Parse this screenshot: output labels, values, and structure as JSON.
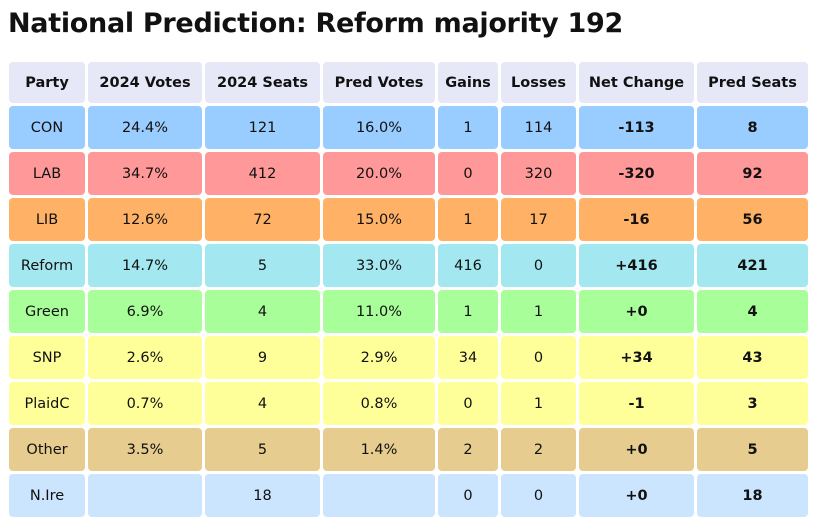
{
  "title": "National Prediction: Reform majority 192",
  "columns": [
    "Party",
    "2024 Votes",
    "2024 Seats",
    "Pred Votes",
    "Gains",
    "Losses",
    "Net Change",
    "Pred Seats"
  ],
  "rows": [
    {
      "party": "CON",
      "votes_2024": "24.4%",
      "seats_2024": "121",
      "pred_votes": "16.0%",
      "gains": "1",
      "losses": "114",
      "net_change": "-113",
      "pred_seats": "8",
      "color": "#99ccff"
    },
    {
      "party": "LAB",
      "votes_2024": "34.7%",
      "seats_2024": "412",
      "pred_votes": "20.0%",
      "gains": "0",
      "losses": "320",
      "net_change": "-320",
      "pred_seats": "92",
      "color": "#ff9999"
    },
    {
      "party": "LIB",
      "votes_2024": "12.6%",
      "seats_2024": "72",
      "pred_votes": "15.0%",
      "gains": "1",
      "losses": "17",
      "net_change": "-16",
      "pred_seats": "56",
      "color": "#ffb266"
    },
    {
      "party": "Reform",
      "votes_2024": "14.7%",
      "seats_2024": "5",
      "pred_votes": "33.0%",
      "gains": "416",
      "losses": "0",
      "net_change": "+416",
      "pred_seats": "421",
      "color": "#a3e8f0"
    },
    {
      "party": "Green",
      "votes_2024": "6.9%",
      "seats_2024": "4",
      "pred_votes": "11.0%",
      "gains": "1",
      "losses": "1",
      "net_change": "+0",
      "pred_seats": "4",
      "color": "#a8ff99"
    },
    {
      "party": "SNP",
      "votes_2024": "2.6%",
      "seats_2024": "9",
      "pred_votes": "2.9%",
      "gains": "34",
      "losses": "0",
      "net_change": "+34",
      "pred_seats": "43",
      "color": "#ffff99"
    },
    {
      "party": "PlaidC",
      "votes_2024": "0.7%",
      "seats_2024": "4",
      "pred_votes": "0.8%",
      "gains": "0",
      "losses": "1",
      "net_change": "-1",
      "pred_seats": "3",
      "color": "#ffff99"
    },
    {
      "party": "Other",
      "votes_2024": "3.5%",
      "seats_2024": "5",
      "pred_votes": "1.4%",
      "gains": "2",
      "losses": "2",
      "net_change": "+0",
      "pred_seats": "5",
      "color": "#e6cc8f"
    },
    {
      "party": "N.Ire",
      "votes_2024": "",
      "seats_2024": "18",
      "pred_votes": "",
      "gains": "0",
      "losses": "0",
      "net_change": "+0",
      "pred_seats": "18",
      "color": "#cce5ff"
    }
  ]
}
